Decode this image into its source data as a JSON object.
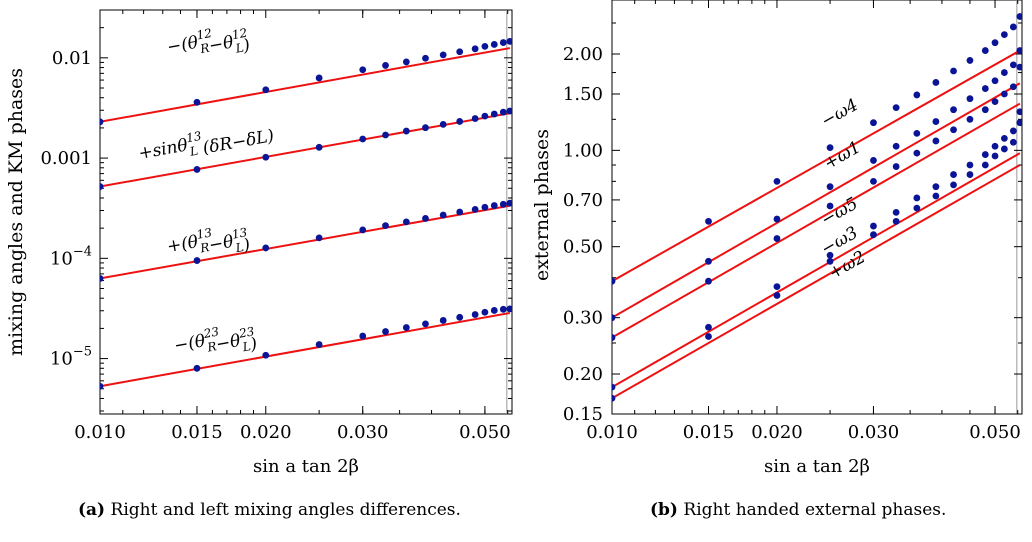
{
  "captions": [
    {
      "tag": "(a)",
      "text": "Right and left mixing angles differences."
    },
    {
      "tag": "(b)",
      "text": "Right handed external phases."
    }
  ],
  "chart_data": [
    {
      "id": "a",
      "type": "scatter",
      "xscale": "log",
      "yscale": "log",
      "xlabel": "sin a  tan 2β",
      "ylabel": "mixing  angles  and  KM phases",
      "xlim": [
        0.01,
        0.056
      ],
      "ylim": [
        2.8e-06,
        0.03
      ],
      "xticks": [
        0.01,
        0.015,
        0.02,
        0.03,
        0.05
      ],
      "xtick_labels": [
        "0.010",
        "0.015",
        "0.020",
        "0.030",
        "0.050"
      ],
      "yticks": [
        1e-05,
        0.0001,
        0.001,
        0.01
      ],
      "ytick_labels": [
        {
          "base": "10",
          "exp": "−5"
        },
        {
          "base": "10",
          "exp": "−4"
        },
        {
          "base": "0.001",
          "exp": ""
        },
        {
          "base": "0.01",
          "exp": ""
        }
      ],
      "vline_x": 0.0548,
      "colors": {
        "line": "#ee1111",
        "points": "#0a1496"
      },
      "series": [
        {
          "name": "−(θR12−θL12)",
          "label": {
            "pre": "−(θ",
            "sup1": "12",
            "sub1": "R",
            "mid": "−θ",
            "sup2": "12",
            "sub2": "L",
            "post": ")"
          },
          "label_pos": [
            0.0133,
            0.0112
          ],
          "line": {
            "x": [
              0.01,
              0.0555
            ],
            "y": [
              0.0023,
              0.0125
            ]
          },
          "points": {
            "x": [
              0.01,
              0.015,
              0.02,
              0.025,
              0.03,
              0.033,
              0.036,
              0.039,
              0.042,
              0.045,
              0.048,
              0.05,
              0.052,
              0.054,
              0.0555
            ],
            "y": [
              0.0023,
              0.0036,
              0.0048,
              0.0063,
              0.0076,
              0.0084,
              0.0091,
              0.0099,
              0.0107,
              0.0115,
              0.0123,
              0.013,
              0.0136,
              0.0142,
              0.0146
            ]
          }
        },
        {
          "name": "+sinθL13 (δR−δL)",
          "label": {
            "pre": "+sinθ",
            "sup1": "13",
            "sub1": "L",
            "mid": "",
            "sup2": "",
            "sub2": "",
            "post": " (δR−δL)"
          },
          "label_pos": [
            0.0118,
            0.00098
          ],
          "line": {
            "x": [
              0.01,
              0.0555
            ],
            "y": [
              0.00052,
              0.0028
            ]
          },
          "points": {
            "x": [
              0.01,
              0.015,
              0.02,
              0.025,
              0.03,
              0.033,
              0.036,
              0.039,
              0.042,
              0.045,
              0.048,
              0.05,
              0.052,
              0.054,
              0.0555
            ],
            "y": [
              0.00052,
              0.00077,
              0.00102,
              0.00128,
              0.00155,
              0.0017,
              0.00186,
              0.00201,
              0.00217,
              0.00232,
              0.00248,
              0.00262,
              0.00275,
              0.00287,
              0.00295
            ]
          }
        },
        {
          "name": "+(θR13−θL13)",
          "label": {
            "pre": "+(θ",
            "sup1": "13",
            "sub1": "R",
            "mid": "−θ",
            "sup2": "13",
            "sub2": "L",
            "post": ")"
          },
          "label_pos": [
            0.0133,
            0.000115
          ],
          "line": {
            "x": [
              0.01,
              0.0555
            ],
            "y": [
              6.3e-05,
              0.000335
            ]
          },
          "points": {
            "x": [
              0.01,
              0.015,
              0.02,
              0.025,
              0.03,
              0.033,
              0.036,
              0.039,
              0.042,
              0.045,
              0.048,
              0.05,
              0.052,
              0.054,
              0.0555
            ],
            "y": [
              6.3e-05,
              9.5e-05,
              0.000127,
              0.00016,
              0.000192,
              0.000212,
              0.000231,
              0.00025,
              0.00027,
              0.00029,
              0.000308,
              0.000323,
              0.000336,
              0.000346,
              0.000355
            ]
          }
        },
        {
          "name": "−(θR23−θL23)",
          "label": {
            "pre": "−(θ",
            "sup1": "23",
            "sub1": "R",
            "mid": "−θ",
            "sup2": "23",
            "sub2": "L",
            "post": ")"
          },
          "label_pos": [
            0.0137,
            1.18e-05
          ],
          "line": {
            "x": [
              0.01,
              0.0555
            ],
            "y": [
              5.3e-06,
              2.85e-05
            ]
          },
          "points": {
            "x": [
              0.01,
              0.015,
              0.02,
              0.025,
              0.03,
              0.033,
              0.036,
              0.039,
              0.042,
              0.045,
              0.048,
              0.05,
              0.052,
              0.054,
              0.0555
            ],
            "y": [
              5.3e-06,
              8e-06,
              1.08e-05,
              1.38e-05,
              1.68e-05,
              1.86e-05,
              2.04e-05,
              2.22e-05,
              2.4e-05,
              2.58e-05,
              2.75e-05,
              2.9e-05,
              3.02e-05,
              3.1e-05,
              3.13e-05
            ]
          }
        }
      ]
    },
    {
      "id": "b",
      "type": "scatter",
      "xscale": "log",
      "yscale": "log",
      "xlabel": "sin a  tan 2β",
      "ylabel": "external phases",
      "xlim": [
        0.01,
        0.056
      ],
      "ylim": [
        0.15,
        2.95
      ],
      "xticks": [
        0.01,
        0.015,
        0.02,
        0.03,
        0.05
      ],
      "xtick_labels": [
        "0.010",
        "0.015",
        "0.020",
        "0.030",
        "0.050"
      ],
      "yticks": [
        0.15,
        0.2,
        0.3,
        0.5,
        0.7,
        1.0,
        1.5,
        2.0
      ],
      "ytick_labels": [
        "0.15",
        "0.20",
        "0.30",
        "0.50",
        "0.70",
        "1.00",
        "1.50",
        "2.00"
      ],
      "vline_x": 0.0548,
      "colors": {
        "line": "#ee1111",
        "points": "#0a1496"
      },
      "series": [
        {
          "name": "−ω4",
          "label": {
            "pre": "−ω4"
          },
          "label_pos": [
            0.0245,
            1.18
          ],
          "line": {
            "x": [
              0.01,
              0.0555
            ],
            "y": [
              0.39,
              2.05
            ]
          },
          "points": {
            "x": [
              0.01,
              0.015,
              0.02,
              0.025,
              0.03,
              0.033,
              0.036,
              0.039,
              0.042,
              0.045,
              0.048,
              0.05,
              0.052,
              0.054,
              0.0555
            ],
            "y": [
              0.39,
              0.6,
              0.8,
              1.02,
              1.22,
              1.36,
              1.49,
              1.63,
              1.77,
              1.91,
              2.05,
              2.17,
              2.3,
              2.43,
              2.62
            ]
          }
        },
        {
          "name": "+ω1",
          "label": {
            "pre": "+ω1"
          },
          "label_pos": [
            0.0248,
            0.87
          ],
          "line": {
            "x": [
              0.01,
              0.0555
            ],
            "y": [
              0.3,
              1.62
            ]
          },
          "points": {
            "x": [
              0.01,
              0.015,
              0.02,
              0.025,
              0.03,
              0.033,
              0.036,
              0.039,
              0.042,
              0.045,
              0.048,
              0.05,
              0.052,
              0.054,
              0.0555
            ],
            "y": [
              0.3,
              0.45,
              0.61,
              0.77,
              0.93,
              1.03,
              1.13,
              1.23,
              1.34,
              1.45,
              1.56,
              1.65,
              1.75,
              1.85,
              2.05
            ]
          }
        },
        {
          "name": "−ω5",
          "label": {
            "pre": "−ω5"
          },
          "label_pos": [
            0.0245,
            0.58
          ],
          "line": {
            "x": [
              0.01,
              0.0555
            ],
            "y": [
              0.26,
              1.4
            ]
          },
          "points": {
            "x": [
              0.01,
              0.015,
              0.02,
              0.025,
              0.03,
              0.033,
              0.036,
              0.039,
              0.042,
              0.045,
              0.048,
              0.05,
              0.052,
              0.054,
              0.0555
            ],
            "y": [
              0.26,
              0.39,
              0.53,
              0.67,
              0.8,
              0.89,
              0.98,
              1.07,
              1.16,
              1.25,
              1.34,
              1.42,
              1.5,
              1.58,
              1.82
            ]
          }
        },
        {
          "name": "−ω3",
          "label": {
            "pre": "−ω3"
          },
          "label_pos": [
            0.0245,
            0.47
          ],
          "line": {
            "x": [
              0.01,
              0.0555
            ],
            "y": [
              0.182,
              0.98
            ]
          },
          "points": {
            "x": [
              0.01,
              0.015,
              0.02,
              0.025,
              0.03,
              0.033,
              0.036,
              0.039,
              0.042,
              0.045,
              0.048,
              0.05,
              0.052,
              0.054,
              0.0555
            ],
            "y": [
              0.182,
              0.28,
              0.375,
              0.47,
              0.58,
              0.64,
              0.71,
              0.77,
              0.84,
              0.9,
              0.97,
              1.03,
              1.09,
              1.15,
              1.32
            ]
          }
        },
        {
          "name": "+ω2",
          "label": {
            "pre": "+ω2"
          },
          "label_pos": [
            0.0253,
            0.395
          ],
          "line": {
            "x": [
              0.01,
              0.0555
            ],
            "y": [
              0.168,
              0.9
            ]
          },
          "points": {
            "x": [
              0.01,
              0.015,
              0.02,
              0.025,
              0.03,
              0.033,
              0.036,
              0.039,
              0.042,
              0.045,
              0.048,
              0.05,
              0.052,
              0.054,
              0.0555
            ],
            "y": [
              0.168,
              0.262,
              0.352,
              0.45,
              0.545,
              0.6,
              0.66,
              0.72,
              0.78,
              0.84,
              0.9,
              0.96,
              1.01,
              1.06,
              1.22
            ]
          }
        }
      ]
    }
  ]
}
